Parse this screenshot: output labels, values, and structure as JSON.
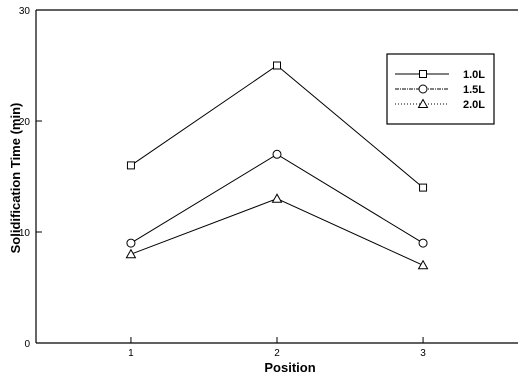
{
  "chart_data": {
    "type": "line",
    "title": "",
    "xlabel": "Position",
    "ylabel": "Solidification Time (min)",
    "x": [
      1,
      2,
      3
    ],
    "x_ticks": [
      1,
      2,
      3
    ],
    "y_ticks": [
      0,
      10,
      20,
      30
    ],
    "xlim": [
      0.35,
      3.65
    ],
    "ylim": [
      0,
      30
    ],
    "grid": false,
    "legend_position": "top-right",
    "series": [
      {
        "name": "1.0L",
        "marker": "square",
        "values": [
          16,
          25,
          14
        ]
      },
      {
        "name": "1.5L",
        "marker": "circle",
        "values": [
          9,
          17,
          9
        ]
      },
      {
        "name": "2.0L",
        "marker": "triangle",
        "values": [
          8,
          13,
          7
        ]
      }
    ]
  }
}
